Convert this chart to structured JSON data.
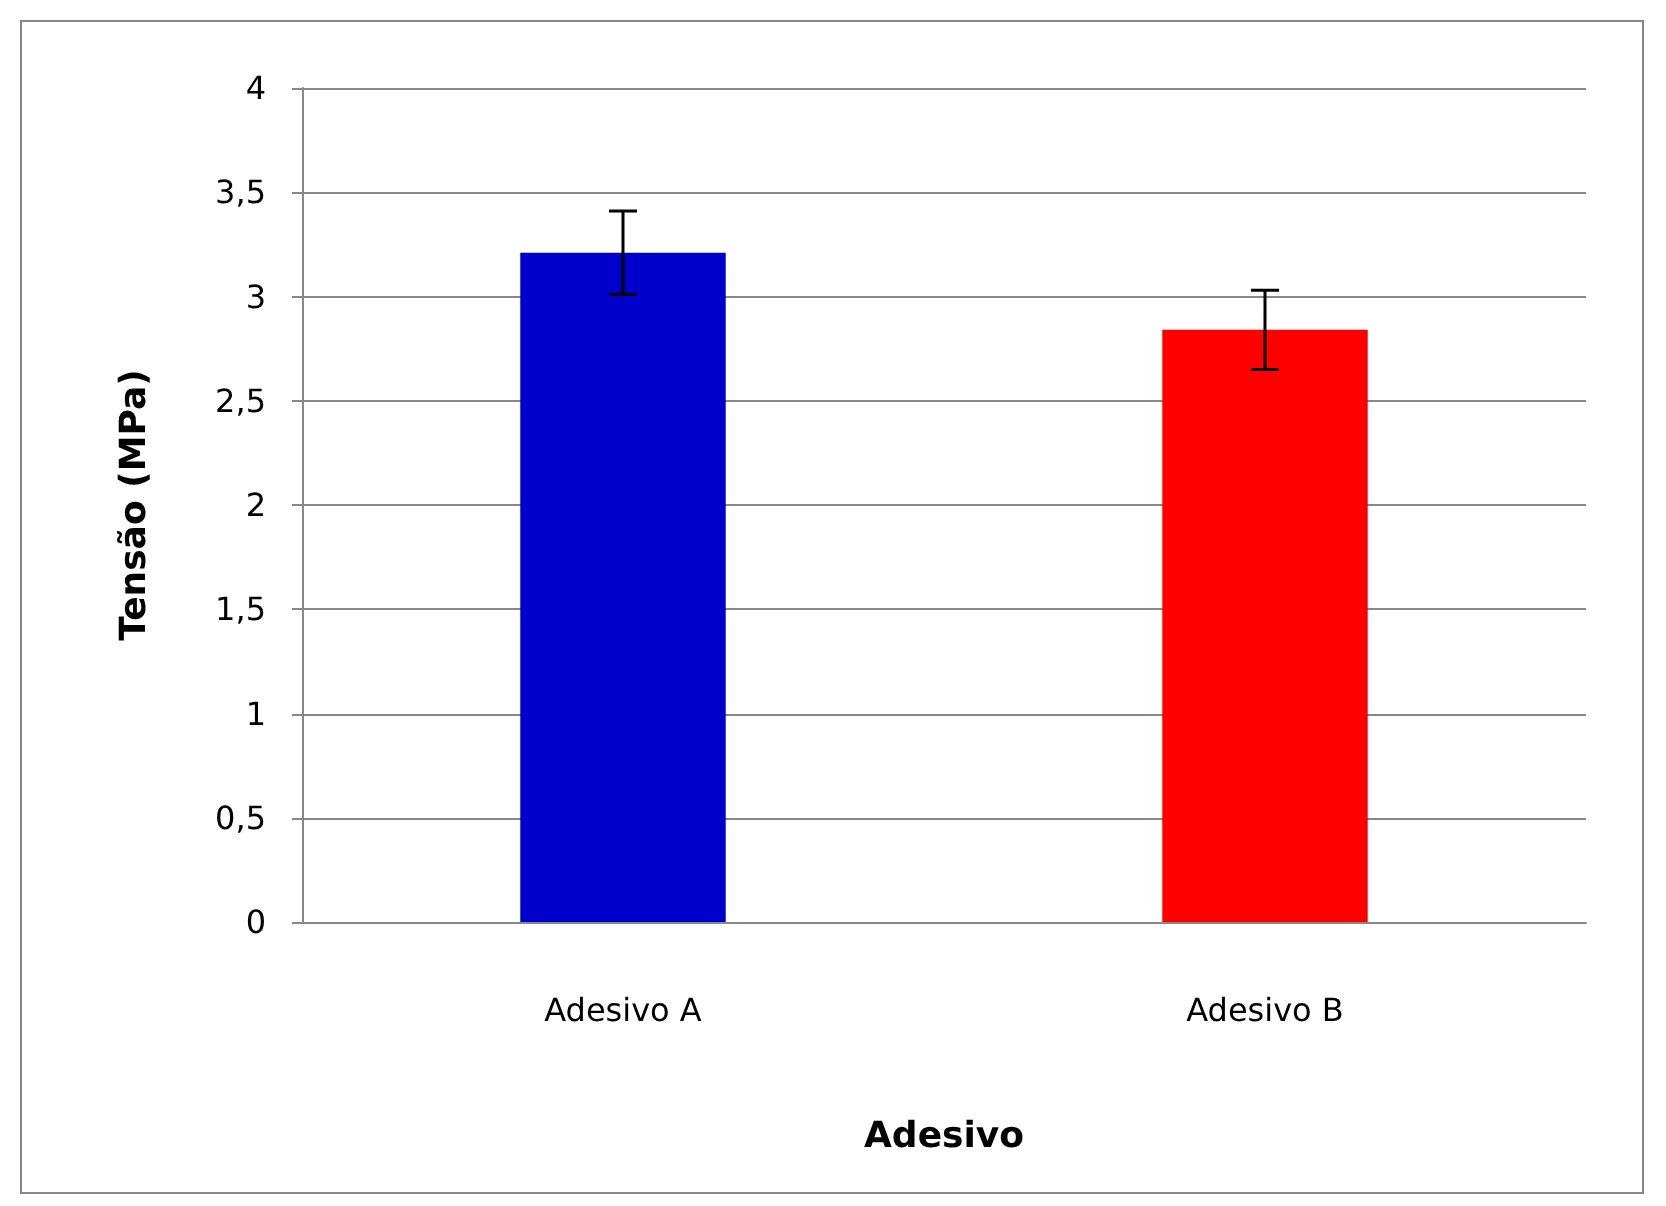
{
  "chart_data": {
    "type": "bar",
    "xlabel": "Adesivo",
    "ylabel": "Tensão (MPa)",
    "categories": [
      "Adesivo A",
      "Adesivo B"
    ],
    "values": [
      3.21,
      2.84
    ],
    "colors": [
      "#0000cc",
      "#ff0000"
    ],
    "errors": [
      0.2,
      0.19
    ],
    "ylim": [
      0,
      4
    ],
    "yticks": [
      0,
      {
        "value": 0.5,
        "label": "0,5"
      },
      1,
      {
        "value": 1.5,
        "label": "1,5"
      },
      2,
      {
        "value": 2.5,
        "label": "2,5"
      },
      3,
      {
        "value": 3.5,
        "label": "3,5"
      },
      4
    ],
    "grid": "y"
  }
}
